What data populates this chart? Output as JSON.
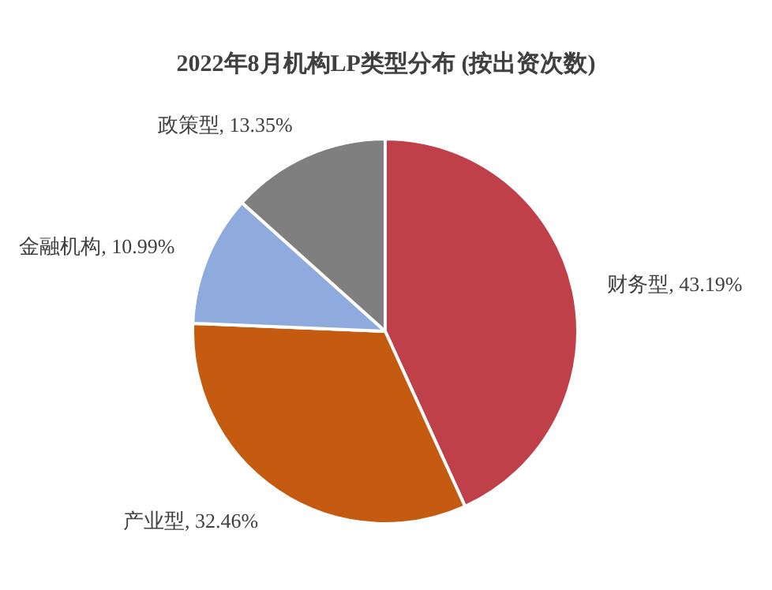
{
  "chart_data": {
    "type": "pie",
    "title": "2022年8月机构LP类型分布 (按出资次数)",
    "categories": [
      "财务型",
      "产业型",
      "金融机构",
      "政策型"
    ],
    "values": [
      43.19,
      32.46,
      10.99,
      13.35
    ],
    "colors": [
      "#c0404a",
      "#c55a11",
      "#8faadc",
      "#7f7f7f"
    ],
    "value_labels": [
      "43.19%",
      "32.46%",
      "10.99%",
      "13.35%"
    ]
  }
}
